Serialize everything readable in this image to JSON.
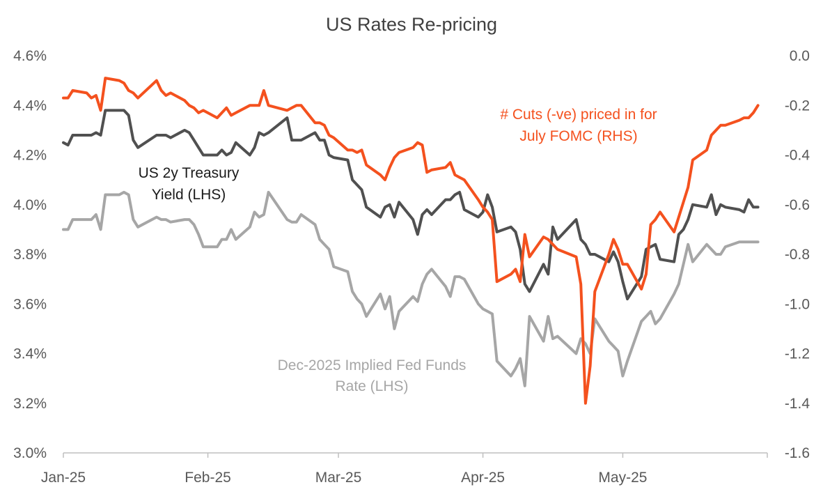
{
  "chart_data": {
    "type": "line",
    "title": "US Rates Re-pricing",
    "x_ticks": [
      "Jan-25",
      "Feb-25",
      "Mar-25",
      "Apr-25",
      "May-25"
    ],
    "x_tick_dates": [
      "2025-01-01",
      "2025-02-01",
      "2025-03-01",
      "2025-04-01",
      "2025-05-01"
    ],
    "x_range": [
      "2025-01-01",
      "2025-06-01"
    ],
    "y_left": {
      "ticks": [
        "3.0%",
        "3.2%",
        "3.4%",
        "3.6%",
        "3.8%",
        "4.0%",
        "4.2%",
        "4.4%",
        "4.6%"
      ],
      "ylim": [
        3.0,
        4.6
      ]
    },
    "y_right": {
      "ticks": [
        "-1.6",
        "-1.4",
        "-1.2",
        "-1.0",
        "-0.8",
        "-0.6",
        "-0.4",
        "-0.2",
        "0.0"
      ],
      "ylim": [
        -1.6,
        0.0
      ]
    },
    "grid": false,
    "colors": {
      "treasury": "#505050",
      "fedfunds": "#a6a6a6",
      "cuts": "#f4511e",
      "axis": "#bfbfbf",
      "tick_text": "#595959"
    },
    "annotations": {
      "treasury": [
        "US 2y Treasury",
        "Yield (LHS)"
      ],
      "fedfunds": [
        "Dec-2025 Implied Fed Funds",
        "Rate (LHS)"
      ],
      "cuts": [
        "# Cuts (-ve) priced in for",
        "July FOMC (RHS)"
      ]
    },
    "series": [
      {
        "key": "treasury",
        "axis": "left",
        "x": [
          "2025-01-01",
          "2025-01-02",
          "2025-01-03",
          "2025-01-06",
          "2025-01-07",
          "2025-01-08",
          "2025-01-09",
          "2025-01-10",
          "2025-01-13",
          "2025-01-14",
          "2025-01-15",
          "2025-01-16",
          "2025-01-17",
          "2025-01-21",
          "2025-01-22",
          "2025-01-23",
          "2025-01-24",
          "2025-01-27",
          "2025-01-28",
          "2025-01-29",
          "2025-01-30",
          "2025-01-31",
          "2025-02-03",
          "2025-02-04",
          "2025-02-05",
          "2025-02-06",
          "2025-02-07",
          "2025-02-10",
          "2025-02-11",
          "2025-02-12",
          "2025-02-13",
          "2025-02-14",
          "2025-02-18",
          "2025-02-19",
          "2025-02-20",
          "2025-02-21",
          "2025-02-24",
          "2025-02-25",
          "2025-02-26",
          "2025-02-27",
          "2025-02-28",
          "2025-03-03",
          "2025-03-04",
          "2025-03-05",
          "2025-03-06",
          "2025-03-07",
          "2025-03-10",
          "2025-03-11",
          "2025-03-12",
          "2025-03-13",
          "2025-03-14",
          "2025-03-17",
          "2025-03-18",
          "2025-03-19",
          "2025-03-20",
          "2025-03-21",
          "2025-03-24",
          "2025-03-25",
          "2025-03-26",
          "2025-03-27",
          "2025-03-28",
          "2025-03-31",
          "2025-04-01",
          "2025-04-02",
          "2025-04-03",
          "2025-04-04",
          "2025-04-07",
          "2025-04-08",
          "2025-04-09",
          "2025-04-10",
          "2025-04-11",
          "2025-04-14",
          "2025-04-15",
          "2025-04-16",
          "2025-04-17",
          "2025-04-21",
          "2025-04-22",
          "2025-04-23",
          "2025-04-24",
          "2025-04-25",
          "2025-04-28",
          "2025-04-29",
          "2025-04-30",
          "2025-05-01",
          "2025-05-02",
          "2025-05-05",
          "2025-05-06",
          "2025-05-07",
          "2025-05-08",
          "2025-05-09",
          "2025-05-12",
          "2025-05-13",
          "2025-05-14",
          "2025-05-15",
          "2025-05-16",
          "2025-05-19",
          "2025-05-20",
          "2025-05-21",
          "2025-05-22",
          "2025-05-23",
          "2025-05-26",
          "2025-05-27",
          "2025-05-28",
          "2025-05-29",
          "2025-05-30"
        ],
        "values": [
          4.25,
          4.24,
          4.28,
          4.28,
          4.28,
          4.29,
          4.28,
          4.38,
          4.38,
          4.38,
          4.36,
          4.26,
          4.23,
          4.28,
          4.28,
          4.28,
          4.27,
          4.3,
          4.29,
          4.26,
          4.23,
          4.2,
          4.2,
          4.22,
          4.2,
          4.21,
          4.25,
          4.2,
          4.23,
          4.29,
          4.28,
          4.29,
          4.35,
          4.26,
          4.26,
          4.26,
          4.29,
          4.26,
          4.26,
          4.2,
          4.19,
          4.18,
          4.1,
          4.08,
          4.06,
          3.99,
          3.95,
          3.99,
          4.0,
          3.95,
          4.01,
          3.94,
          3.88,
          3.96,
          3.98,
          3.96,
          4.02,
          4.02,
          4.04,
          4.05,
          3.98,
          3.95,
          3.97,
          4.04,
          3.99,
          3.89,
          3.91,
          3.89,
          3.82,
          3.68,
          3.65,
          3.76,
          3.72,
          3.91,
          3.86,
          3.94,
          3.86,
          3.84,
          3.8,
          3.8,
          3.77,
          3.81,
          3.77,
          3.69,
          3.62,
          3.71,
          3.82,
          3.83,
          3.84,
          3.78,
          3.77,
          3.88,
          3.9,
          3.94,
          4.0,
          3.99,
          4.04,
          3.96,
          4.0,
          3.99,
          3.98,
          3.97,
          4.02,
          3.99,
          3.99
        ]
      },
      {
        "key": "fedfunds",
        "axis": "left",
        "x": [
          "2025-01-01",
          "2025-01-02",
          "2025-01-03",
          "2025-01-06",
          "2025-01-07",
          "2025-01-08",
          "2025-01-09",
          "2025-01-10",
          "2025-01-13",
          "2025-01-14",
          "2025-01-15",
          "2025-01-16",
          "2025-01-17",
          "2025-01-21",
          "2025-01-22",
          "2025-01-23",
          "2025-01-24",
          "2025-01-27",
          "2025-01-28",
          "2025-01-29",
          "2025-01-30",
          "2025-01-31",
          "2025-02-03",
          "2025-02-04",
          "2025-02-05",
          "2025-02-06",
          "2025-02-07",
          "2025-02-10",
          "2025-02-11",
          "2025-02-12",
          "2025-02-13",
          "2025-02-14",
          "2025-02-18",
          "2025-02-19",
          "2025-02-20",
          "2025-02-21",
          "2025-02-24",
          "2025-02-25",
          "2025-02-26",
          "2025-02-27",
          "2025-02-28",
          "2025-03-03",
          "2025-03-04",
          "2025-03-05",
          "2025-03-06",
          "2025-03-07",
          "2025-03-10",
          "2025-03-11",
          "2025-03-12",
          "2025-03-13",
          "2025-03-14",
          "2025-03-17",
          "2025-03-18",
          "2025-03-19",
          "2025-03-20",
          "2025-03-21",
          "2025-03-24",
          "2025-03-25",
          "2025-03-26",
          "2025-03-27",
          "2025-03-28",
          "2025-03-31",
          "2025-04-01",
          "2025-04-02",
          "2025-04-03",
          "2025-04-04",
          "2025-04-07",
          "2025-04-08",
          "2025-04-09",
          "2025-04-10",
          "2025-04-11",
          "2025-04-14",
          "2025-04-15",
          "2025-04-16",
          "2025-04-17",
          "2025-04-21",
          "2025-04-22",
          "2025-04-23",
          "2025-04-24",
          "2025-04-25",
          "2025-04-28",
          "2025-04-29",
          "2025-04-30",
          "2025-05-01",
          "2025-05-02",
          "2025-05-05",
          "2025-05-06",
          "2025-05-07",
          "2025-05-08",
          "2025-05-09",
          "2025-05-12",
          "2025-05-13",
          "2025-05-14",
          "2025-05-15",
          "2025-05-16",
          "2025-05-19",
          "2025-05-20",
          "2025-05-21",
          "2025-05-22",
          "2025-05-23",
          "2025-05-26",
          "2025-05-27",
          "2025-05-28",
          "2025-05-29",
          "2025-05-30"
        ],
        "values": [
          3.9,
          3.9,
          3.94,
          3.94,
          3.94,
          3.96,
          3.9,
          4.04,
          4.04,
          4.05,
          4.04,
          3.94,
          3.91,
          3.95,
          3.94,
          3.94,
          3.93,
          3.94,
          3.94,
          3.92,
          3.88,
          3.83,
          3.83,
          3.86,
          3.86,
          3.9,
          3.86,
          3.91,
          3.97,
          3.95,
          3.96,
          4.05,
          3.94,
          3.93,
          3.93,
          3.96,
          3.92,
          3.86,
          3.84,
          3.82,
          3.75,
          3.73,
          3.65,
          3.62,
          3.6,
          3.55,
          3.64,
          3.58,
          3.63,
          3.5,
          3.57,
          3.63,
          3.61,
          3.68,
          3.72,
          3.74,
          3.67,
          3.63,
          3.71,
          3.71,
          3.7,
          3.6,
          3.58,
          3.57,
          3.56,
          3.37,
          3.31,
          3.34,
          3.38,
          3.27,
          3.55,
          3.45,
          3.55,
          3.46,
          3.47,
          3.4,
          3.46,
          3.44,
          3.4,
          3.54,
          3.45,
          3.43,
          3.41,
          3.31,
          3.37,
          3.53,
          3.55,
          3.57,
          3.52,
          3.54,
          3.64,
          3.68,
          3.76,
          3.84,
          3.77,
          3.84,
          3.82,
          3.8,
          3.8,
          3.83,
          3.85,
          3.85,
          3.85,
          3.85,
          3.85
        ]
      },
      {
        "key": "cuts",
        "axis": "right",
        "x": [
          "2025-01-01",
          "2025-01-02",
          "2025-01-03",
          "2025-01-06",
          "2025-01-07",
          "2025-01-08",
          "2025-01-09",
          "2025-01-10",
          "2025-01-13",
          "2025-01-14",
          "2025-01-15",
          "2025-01-16",
          "2025-01-17",
          "2025-01-21",
          "2025-01-22",
          "2025-01-23",
          "2025-01-24",
          "2025-01-27",
          "2025-01-28",
          "2025-01-29",
          "2025-01-30",
          "2025-01-31",
          "2025-02-03",
          "2025-02-04",
          "2025-02-05",
          "2025-02-06",
          "2025-02-07",
          "2025-02-10",
          "2025-02-11",
          "2025-02-12",
          "2025-02-13",
          "2025-02-14",
          "2025-02-18",
          "2025-02-19",
          "2025-02-20",
          "2025-02-21",
          "2025-02-24",
          "2025-02-25",
          "2025-02-26",
          "2025-02-27",
          "2025-02-28",
          "2025-03-03",
          "2025-03-04",
          "2025-03-05",
          "2025-03-06",
          "2025-03-07",
          "2025-03-10",
          "2025-03-11",
          "2025-03-12",
          "2025-03-13",
          "2025-03-14",
          "2025-03-17",
          "2025-03-18",
          "2025-03-19",
          "2025-03-20",
          "2025-03-21",
          "2025-03-24",
          "2025-03-25",
          "2025-03-26",
          "2025-03-27",
          "2025-03-28",
          "2025-03-31",
          "2025-04-01",
          "2025-04-02",
          "2025-04-03",
          "2025-04-04",
          "2025-04-07",
          "2025-04-08",
          "2025-04-09",
          "2025-04-10",
          "2025-04-11",
          "2025-04-14",
          "2025-04-15",
          "2025-04-16",
          "2025-04-17",
          "2025-04-21",
          "2025-04-22",
          "2025-04-23",
          "2025-04-24",
          "2025-04-25",
          "2025-04-28",
          "2025-04-29",
          "2025-04-30",
          "2025-05-01",
          "2025-05-02",
          "2025-05-05",
          "2025-05-06",
          "2025-05-07",
          "2025-05-08",
          "2025-05-09",
          "2025-05-12",
          "2025-05-13",
          "2025-05-14",
          "2025-05-15",
          "2025-05-16",
          "2025-05-19",
          "2025-05-20",
          "2025-05-21",
          "2025-05-22",
          "2025-05-23",
          "2025-05-26",
          "2025-05-27",
          "2025-05-28",
          "2025-05-29",
          "2025-05-30"
        ],
        "values": [
          -0.17,
          -0.17,
          -0.14,
          -0.15,
          -0.17,
          -0.16,
          -0.22,
          -0.09,
          -0.1,
          -0.11,
          -0.14,
          -0.15,
          -0.17,
          -0.1,
          -0.14,
          -0.16,
          -0.15,
          -0.18,
          -0.2,
          -0.21,
          -0.23,
          -0.22,
          -0.25,
          -0.23,
          -0.21,
          -0.24,
          -0.23,
          -0.2,
          -0.2,
          -0.2,
          -0.14,
          -0.2,
          -0.22,
          -0.21,
          -0.2,
          -0.2,
          -0.27,
          -0.27,
          -0.28,
          -0.32,
          -0.33,
          -0.38,
          -0.38,
          -0.39,
          -0.38,
          -0.44,
          -0.48,
          -0.5,
          -0.45,
          -0.41,
          -0.39,
          -0.37,
          -0.35,
          -0.36,
          -0.47,
          -0.46,
          -0.45,
          -0.43,
          -0.48,
          -0.49,
          -0.5,
          -0.58,
          -0.61,
          -0.63,
          -0.66,
          -0.91,
          -0.88,
          -0.86,
          -0.91,
          -0.72,
          -0.81,
          -0.73,
          -0.74,
          -0.76,
          -0.78,
          -0.81,
          -0.92,
          -1.4,
          -1.25,
          -0.95,
          -0.8,
          -0.74,
          -0.78,
          -0.84,
          -0.84,
          -0.94,
          -0.88,
          -0.68,
          -0.66,
          -0.63,
          -0.71,
          -0.65,
          -0.59,
          -0.53,
          -0.42,
          -0.38,
          -0.32,
          -0.3,
          -0.28,
          -0.28,
          -0.26,
          -0.25,
          -0.25,
          -0.23,
          -0.2
        ]
      }
    ]
  }
}
